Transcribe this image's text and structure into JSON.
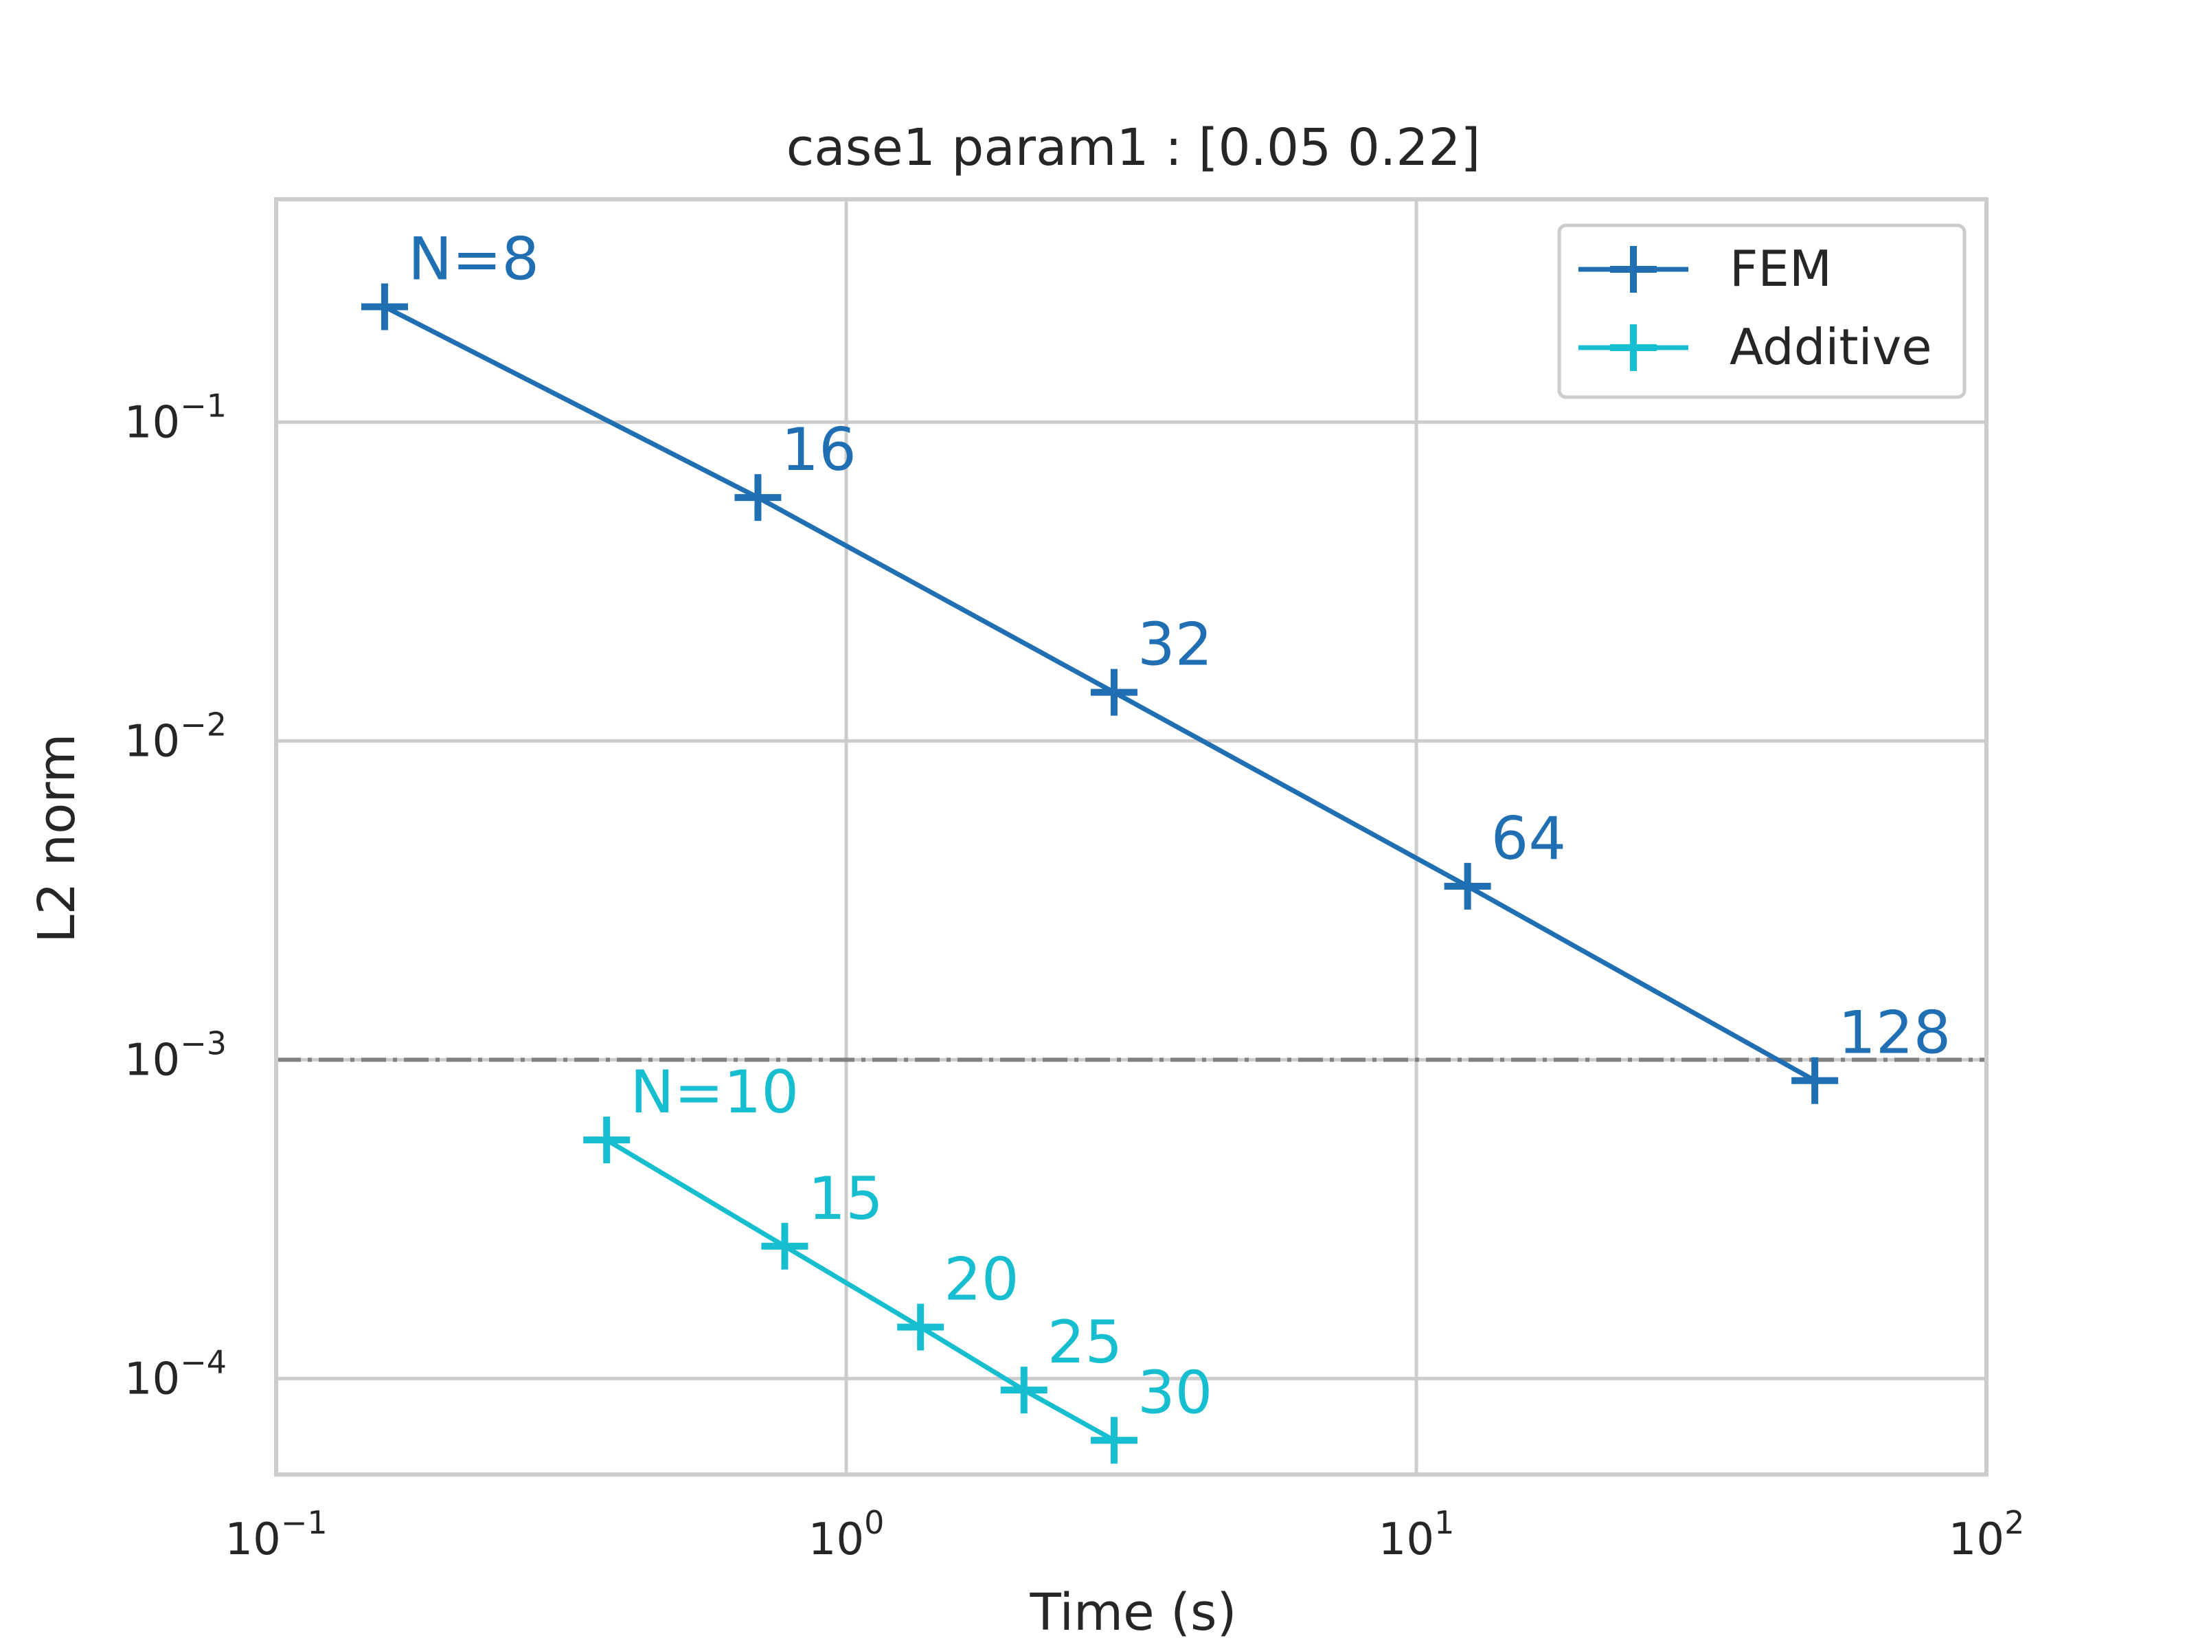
{
  "chart_data": {
    "type": "line",
    "title": "case1 param1 : [0.05 0.22]",
    "xlabel": "Time (s)",
    "ylabel": "L2 norm",
    "xscale": "log",
    "yscale": "log",
    "xlim": [
      0.1,
      100
    ],
    "ylim": [
      5e-05,
      0.5
    ],
    "x_ticks": [
      {
        "value": 0.1,
        "base": "10",
        "exp": "−1"
      },
      {
        "value": 1,
        "base": "10",
        "exp": "0"
      },
      {
        "value": 10,
        "base": "10",
        "exp": "1"
      },
      {
        "value": 100,
        "base": "10",
        "exp": "2"
      }
    ],
    "y_ticks": [
      {
        "value": 0.1,
        "base": "10",
        "exp": "−1"
      },
      {
        "value": 0.01,
        "base": "10",
        "exp": "−2"
      },
      {
        "value": 0.001,
        "base": "10",
        "exp": "−3"
      },
      {
        "value": 0.0001,
        "base": "10",
        "exp": "−4"
      }
    ],
    "grid": true,
    "legend_position": "top-right",
    "reference_line": {
      "y": 0.001,
      "color": "#808080",
      "style": "dash-dot"
    },
    "series": [
      {
        "name": "FEM",
        "color": "#1f6fb2",
        "marker": "plus",
        "points": [
          {
            "x": 0.155,
            "y": 0.23,
            "label": "N=8"
          },
          {
            "x": 0.7,
            "y": 0.058,
            "label": "16"
          },
          {
            "x": 2.95,
            "y": 0.0142,
            "label": "32"
          },
          {
            "x": 12.3,
            "y": 0.0035,
            "label": "64"
          },
          {
            "x": 50.0,
            "y": 0.00086,
            "label": "128"
          }
        ]
      },
      {
        "name": "Additive",
        "color": "#17becf",
        "marker": "plus",
        "points": [
          {
            "x": 0.38,
            "y": 0.00056,
            "label": "N=10"
          },
          {
            "x": 0.78,
            "y": 0.00026,
            "label": "15"
          },
          {
            "x": 1.35,
            "y": 0.000145,
            "label": "20"
          },
          {
            "x": 2.05,
            "y": 9.2e-05,
            "label": "25"
          },
          {
            "x": 2.95,
            "y": 6.4e-05,
            "label": "30"
          }
        ]
      }
    ]
  }
}
